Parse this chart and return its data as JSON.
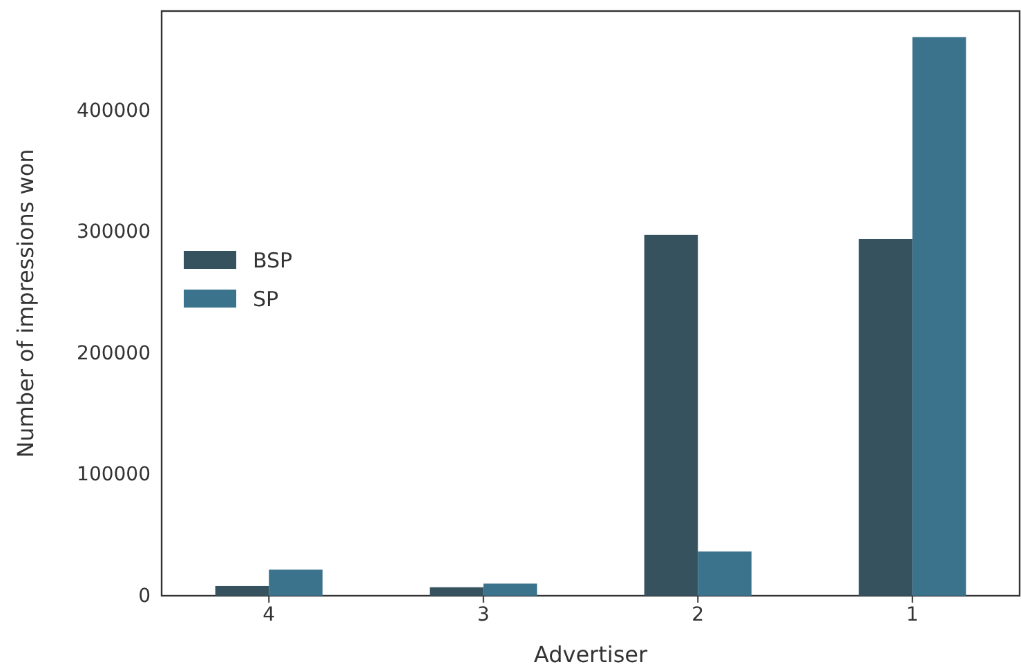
{
  "chart_data": {
    "type": "bar",
    "xlabel": "Advertiser",
    "ylabel": "Number of impressions won",
    "categories": [
      "4",
      "3",
      "2",
      "1"
    ],
    "series": [
      {
        "name": "BSP",
        "color": "#36525e",
        "values": [
          8000,
          7000,
          297500,
          294000
        ]
      },
      {
        "name": "SP",
        "color": "#3b738d",
        "values": [
          21500,
          10000,
          36500,
          460500
        ]
      }
    ],
    "ylim": [
      0,
      482000
    ],
    "yticks": [
      0,
      100000,
      200000,
      300000,
      400000
    ],
    "grid": false,
    "legend": "left"
  }
}
